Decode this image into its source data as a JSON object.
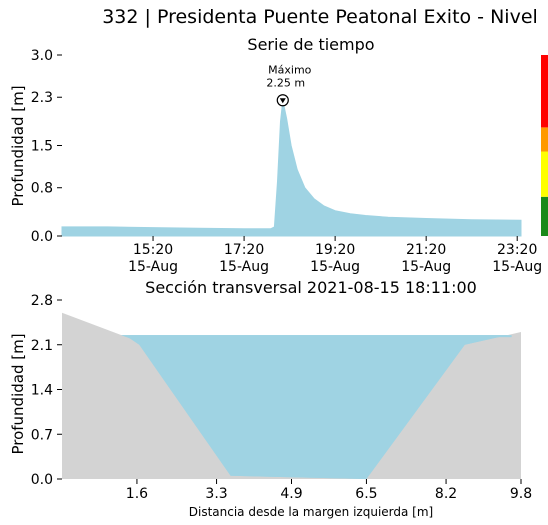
{
  "page_title": "332 | Presidenta Puente Peatonal Exito - Nivel",
  "chart_data": [
    {
      "type": "area",
      "title": "Serie de tiempo",
      "xlabel": "",
      "ylabel": "Profundidad [m]",
      "x_start": "2021-08-15 13:20",
      "x_end": "2021-08-15 23:25",
      "xtick_values": [
        "2021-08-15 15:20",
        "2021-08-15 17:20",
        "2021-08-15 19:20",
        "2021-08-15 21:20",
        "2021-08-15 23:20"
      ],
      "xtick_labels": [
        [
          "15:20",
          "15-Aug"
        ],
        [
          "17:20",
          "15-Aug"
        ],
        [
          "19:20",
          "15-Aug"
        ],
        [
          "21:20",
          "15-Aug"
        ],
        [
          "23:20",
          "15-Aug"
        ]
      ],
      "yticks": [
        "3.0",
        "2.3",
        "1.5",
        "0.8",
        "0.0"
      ],
      "ylim": [
        0,
        3.0
      ],
      "color": "#9fd3e3",
      "series": [
        {
          "x": [
            "2021-08-15 13:20",
            "2021-08-15 14:20",
            "2021-08-15 15:20",
            "2021-08-15 16:20",
            "2021-08-15 17:20",
            "2021-08-15 17:55",
            "2021-08-15 18:00",
            "2021-08-15 18:04",
            "2021-08-15 18:08",
            "2021-08-15 18:11",
            "2021-08-15 18:16",
            "2021-08-15 18:22",
            "2021-08-15 18:30",
            "2021-08-15 18:40",
            "2021-08-15 18:52",
            "2021-08-15 19:05",
            "2021-08-15 19:20",
            "2021-08-15 19:40",
            "2021-08-15 20:00",
            "2021-08-15 20:30",
            "2021-08-15 21:20",
            "2021-08-15 22:20",
            "2021-08-15 23:25"
          ],
          "values": [
            0.15,
            0.15,
            0.14,
            0.13,
            0.12,
            0.12,
            0.15,
            0.9,
            1.9,
            2.25,
            1.95,
            1.5,
            1.1,
            0.8,
            0.62,
            0.5,
            0.42,
            0.37,
            0.34,
            0.31,
            0.29,
            0.27,
            0.26
          ]
        }
      ],
      "annotation": {
        "label": "Máximo",
        "value_label": "2.25 m",
        "x": "2021-08-15 18:11",
        "y": 2.25
      },
      "alert_bar": [
        {
          "from": 0.0,
          "to": 0.65,
          "color": "#1a8a1a"
        },
        {
          "from": 0.65,
          "to": 1.4,
          "color": "#ffff00"
        },
        {
          "from": 1.4,
          "to": 1.8,
          "color": "#ff9900"
        },
        {
          "from": 1.8,
          "to": 3.0,
          "color": "#ff0000"
        }
      ]
    },
    {
      "type": "area",
      "title": "Sección transversal 2021-08-15 18:11:00",
      "xlabel": "Distancia desde la margen izquierda [m]",
      "ylabel": "Profundidad [m]",
      "xticks": [
        "1.6",
        "3.3",
        "4.9",
        "6.5",
        "8.2",
        "9.8"
      ],
      "xlim": [
        0,
        9.8
      ],
      "yticks": [
        "2.8",
        "2.1",
        "1.4",
        "0.7",
        "0.0"
      ],
      "ylim": [
        0,
        2.8
      ],
      "water_level": 2.25,
      "water_color": "#9fd3e3",
      "ground_color": "#d3d3d3",
      "ground_profile": {
        "x": [
          0,
          1.45,
          1.65,
          3.6,
          6.5,
          8.6,
          9.8
        ],
        "y": [
          2.6,
          2.2,
          2.1,
          0.05,
          0.0,
          2.1,
          2.3
        ]
      }
    }
  ]
}
